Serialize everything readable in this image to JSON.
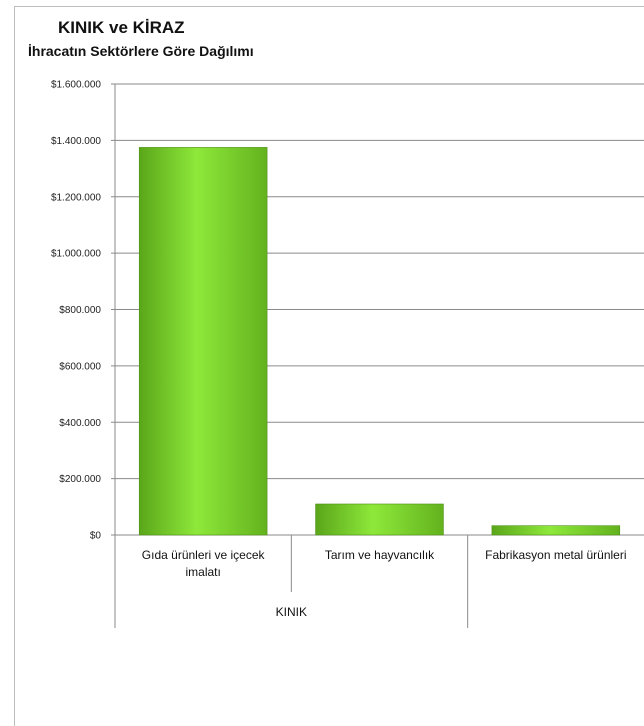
{
  "chart_data": {
    "type": "bar",
    "title": "KINIK ve KİRAZ",
    "subtitle": "İhracatın Sektörlere Göre Dağılımı",
    "categories": [
      [
        "Gıda ürünleri ve içecek",
        "imalatı"
      ],
      [
        "Tarım ve hayvancılık"
      ],
      [
        "Fabrikasyon metal ürünleri"
      ]
    ],
    "group_label": "KINIK",
    "values": [
      1375000,
      110000,
      33000
    ],
    "ylim": [
      0,
      1600000
    ],
    "yticks": [
      0,
      200000,
      400000,
      600000,
      800000,
      1000000,
      1200000,
      1400000,
      1600000
    ],
    "ytick_labels": [
      "$0",
      "$200.000",
      "$400.000",
      "$600.000",
      "$800.000",
      "$1.000.000",
      "$1.200.000",
      "$1.400.000",
      "$1.600.000"
    ],
    "grid": true,
    "bar_color": "#7fd62a"
  }
}
